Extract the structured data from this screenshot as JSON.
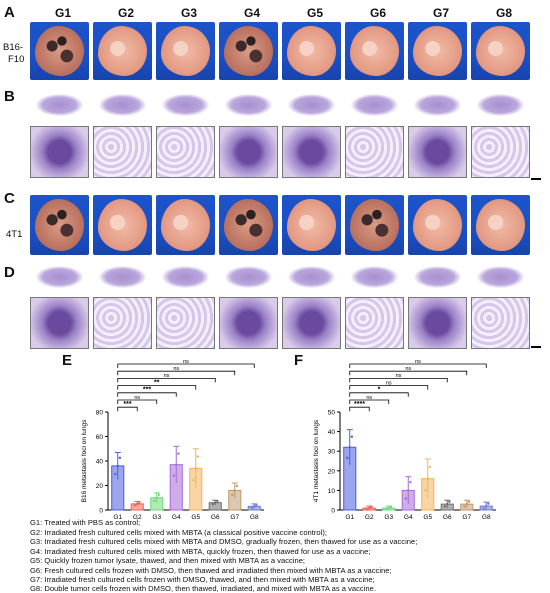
{
  "groups": [
    "G1",
    "G2",
    "G3",
    "G4",
    "G5",
    "G6",
    "G7",
    "G8"
  ],
  "panel_letters": {
    "a": "A",
    "b": "B",
    "c": "C",
    "d": "D",
    "e": "E",
    "f": "F"
  },
  "row_labels": {
    "a_line1": "B16-",
    "a_line2": "F10",
    "c": "4T1"
  },
  "colors": {
    "background_blue": "#1a4fc4",
    "tissue_pink": "#e8a690",
    "histo_purple": "#7b5ba8",
    "bars": [
      "#4a5ce0",
      "#f0625a",
      "#6fd87a",
      "#a86ad6",
      "#f4b25a",
      "#707070",
      "#c09a6b",
      "#6f7ccf"
    ]
  },
  "chart_data": [
    {
      "type": "bar",
      "title": "",
      "ylabel": "B16 metastasis foci on lungs",
      "xlabel": "",
      "ylim": [
        0,
        80
      ],
      "yticks": [
        0,
        20,
        40,
        60,
        80
      ],
      "categories": [
        "G1",
        "G2",
        "G3",
        "G4",
        "G5",
        "G6",
        "G7",
        "G8"
      ],
      "values": [
        36,
        5,
        10,
        37,
        34,
        6,
        16,
        3
      ],
      "errors": [
        11,
        2,
        4,
        15,
        16,
        2,
        6,
        2
      ],
      "significance": [
        {
          "from": "G1",
          "to": "G2",
          "label": "***"
        },
        {
          "from": "G1",
          "to": "G3",
          "label": "ns"
        },
        {
          "from": "G1",
          "to": "G4",
          "label": "***"
        },
        {
          "from": "G1",
          "to": "G5",
          "label": "**"
        },
        {
          "from": "G1",
          "to": "G6",
          "label": "ns"
        },
        {
          "from": "G1",
          "to": "G7",
          "label": "ns"
        },
        {
          "from": "G1",
          "to": "G8",
          "label": "ns"
        }
      ]
    },
    {
      "type": "bar",
      "title": "",
      "ylabel": "4T1 metastasis foci on lungs",
      "xlabel": "",
      "ylim": [
        0,
        50
      ],
      "yticks": [
        0,
        10,
        20,
        30,
        40,
        50
      ],
      "categories": [
        "G1",
        "G2",
        "G3",
        "G4",
        "G5",
        "G6",
        "G7",
        "G8"
      ],
      "values": [
        32,
        1,
        1,
        10,
        16,
        3,
        3,
        2
      ],
      "errors": [
        9,
        1,
        1,
        7,
        10,
        2,
        2,
        2
      ],
      "significance": [
        {
          "from": "G1",
          "to": "G2",
          "label": "****"
        },
        {
          "from": "G1",
          "to": "G3",
          "label": "ns"
        },
        {
          "from": "G1",
          "to": "G4",
          "label": "*"
        },
        {
          "from": "G1",
          "to": "G5",
          "label": "ns"
        },
        {
          "from": "G1",
          "to": "G6",
          "label": "ns"
        },
        {
          "from": "G1",
          "to": "G7",
          "label": "ns"
        },
        {
          "from": "G1",
          "to": "G8",
          "label": "ns"
        }
      ]
    }
  ],
  "legend_lines": [
    "G1: Treated with PBS as control;",
    "G2: Irradiated fresh cultured cells mixed with MBTA (a classical positive vaccine control);",
    "G3: Irradiated fresh cultured cells mixed with MBTA and DMSO, gradually frozen, then thawed for use as a vaccine;",
    "G4: Irradiated fresh cultured cells mixed with MBTA, quickly frozen, then thawed for use as a vaccine;",
    "G5: Quickly frozen tumor lysate, thawed, and then mixed with MBTA as a vaccine;",
    "G6: Fresh cultured cells frozen with DMSO, then thawed and irradiated then mixed with MBTA as a vaccine;",
    "G7: Irradiated fresh cultured cells frozen with DMSO, thawed, and then mixed with MBTA as a vaccine;",
    "G8: Double tumor cells frozen with DMSO, then thawed, irradiated, and mixed with MBTA as a vaccine."
  ]
}
